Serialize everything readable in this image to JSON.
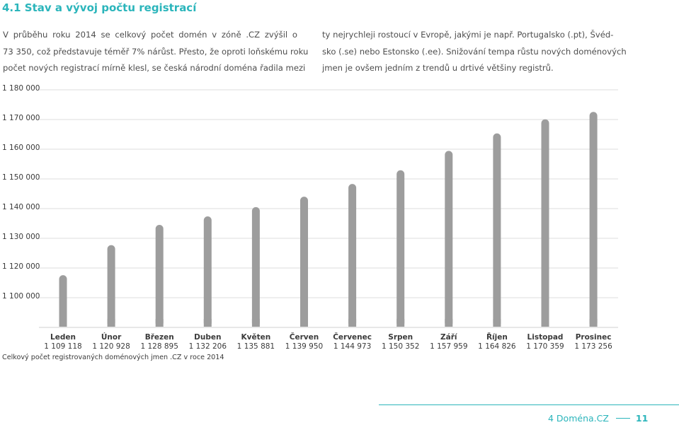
{
  "section_heading": "4.1 Stav a vývoj počtu registrací",
  "intro_left": [
    "V průběhu roku 2014 se celkový počet domén v zóně .CZ zvýšil o",
    "73 350, což představuje téměř 7% nárůst. Přesto, že oproti loňskému roku",
    "počet nových registrací mírně klesl, se česká národní doména řadila mezi"
  ],
  "intro_right": [
    "ty nejrychleji rostoucí v Evropě, jakými je např. Portugalsko (.pt), Švéd-",
    "sko (.se) nebo Estonsko (.ee). Snižování tempa růstu nových doménových",
    "jmen je ovšem jedním z trendů u drtivé většiny registrů."
  ],
  "chart_data": {
    "type": "bar",
    "title": "",
    "caption": "Celkový počet registrovaných doménových jmen .CZ v roce 2014",
    "xlabel": "",
    "ylabel": "",
    "y_tick_labels": [
      "1 180 000",
      "1 170 000",
      "1 160 000",
      "1 150 000",
      "1 140 000",
      "1 130 000",
      "1 120 000",
      "1 100 000"
    ],
    "grid": true,
    "categories": [
      "Leden",
      "Únor",
      "Březen",
      "Duben",
      "Květen",
      "Červen",
      "Červenec",
      "Srpen",
      "Září",
      "Říjen",
      "Listopad",
      "Prosinec"
    ],
    "value_labels": [
      "1 109 118",
      "1 120 928",
      "1 128 895",
      "1 132 206",
      "1 135 881",
      "1 139 950",
      "1 144 973",
      "1 150 352",
      "1 157 959",
      "1 164 826",
      "1 170 359",
      "1 173 256"
    ],
    "values": [
      1109118,
      1120928,
      1128895,
      1132206,
      1135881,
      1139950,
      1144973,
      1150352,
      1157959,
      1164826,
      1170359,
      1173256
    ],
    "bar_color": "#9d9d9d"
  },
  "footer": {
    "publication": "4 Doména.CZ",
    "page_number": "11"
  },
  "colors": {
    "accent": "#2bb5bb",
    "text": "#4d4d4d",
    "grid": "#dcdcdc"
  }
}
